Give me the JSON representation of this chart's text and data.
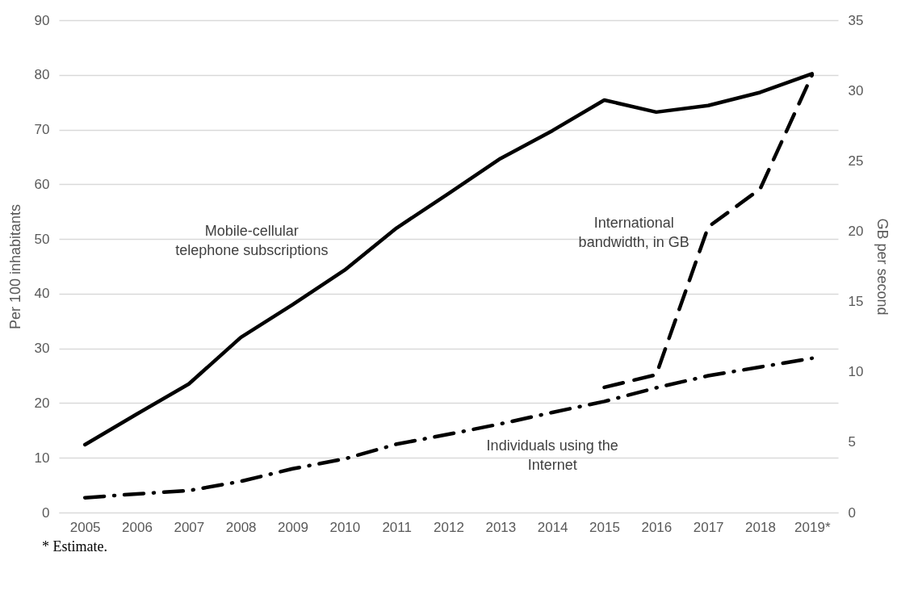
{
  "chart_data": {
    "type": "line",
    "categories": [
      "2005",
      "2006",
      "2007",
      "2008",
      "2009",
      "2010",
      "2011",
      "2012",
      "2013",
      "2014",
      "2015",
      "2016",
      "2017",
      "2018",
      "2019*"
    ],
    "series": [
      {
        "name": "Mobile-cellular telephone subscriptions",
        "color": "#000000",
        "line_style": "solid",
        "values": [
          12.4,
          18.0,
          23.5,
          32.0,
          38.0,
          44.3,
          52.0,
          58.3,
          64.7,
          69.8,
          75.4,
          73.2,
          74.4,
          76.8,
          80.2
        ]
      },
      {
        "name": "Individuals using the Internet",
        "color": "#000000",
        "line_style": "dashdot",
        "values": [
          2.7,
          3.4,
          4.0,
          5.7,
          8.0,
          9.8,
          12.5,
          14.3,
          16.2,
          18.3,
          20.3,
          22.8,
          25.0,
          26.6,
          28.2
        ]
      },
      {
        "name": "International bandwidth, in GB",
        "color": "#000000",
        "line_style": "dashed",
        "axis": "y2",
        "values": [
          null,
          null,
          null,
          null,
          null,
          null,
          null,
          null,
          null,
          null,
          8.9,
          9.8,
          20.3,
          23.0,
          31.1
        ]
      }
    ],
    "ylabel": "Per 100 inhabitants",
    "y2label": "GB per second",
    "ylim": [
      0,
      90
    ],
    "yticks": [
      0,
      10,
      20,
      30,
      40,
      50,
      60,
      70,
      80,
      90
    ],
    "y2lim": [
      0,
      35
    ],
    "y2ticks": [
      0,
      5,
      10,
      15,
      20,
      25,
      30,
      35
    ],
    "grid": "y",
    "annotations": [
      "* Estimate."
    ]
  }
}
